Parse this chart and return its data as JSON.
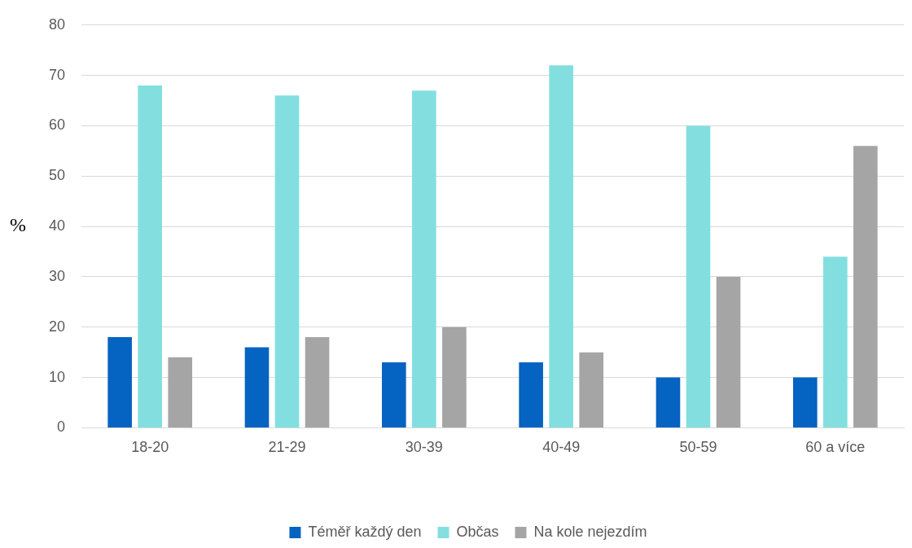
{
  "chart_data": {
    "type": "bar",
    "ylabel": "%",
    "categories": [
      "18-20",
      "21-29",
      "30-39",
      "40-49",
      "50-59",
      "60 a více"
    ],
    "series": [
      {
        "name": "Téměř každý den",
        "color": "#0563c1",
        "values": [
          18,
          16,
          13,
          13,
          10,
          10
        ]
      },
      {
        "name": "Občas",
        "color": "#83dfdf",
        "values": [
          68,
          66,
          67,
          72,
          60,
          34
        ]
      },
      {
        "name": "Na kole nejezdím",
        "color": "#a5a5a5",
        "values": [
          14,
          18,
          20,
          15,
          30,
          56
        ]
      }
    ],
    "ylim": [
      0,
      80
    ],
    "yticks": [
      0,
      10,
      20,
      30,
      40,
      50,
      60,
      70,
      80
    ],
    "grid": "y",
    "legend": "bottom"
  }
}
